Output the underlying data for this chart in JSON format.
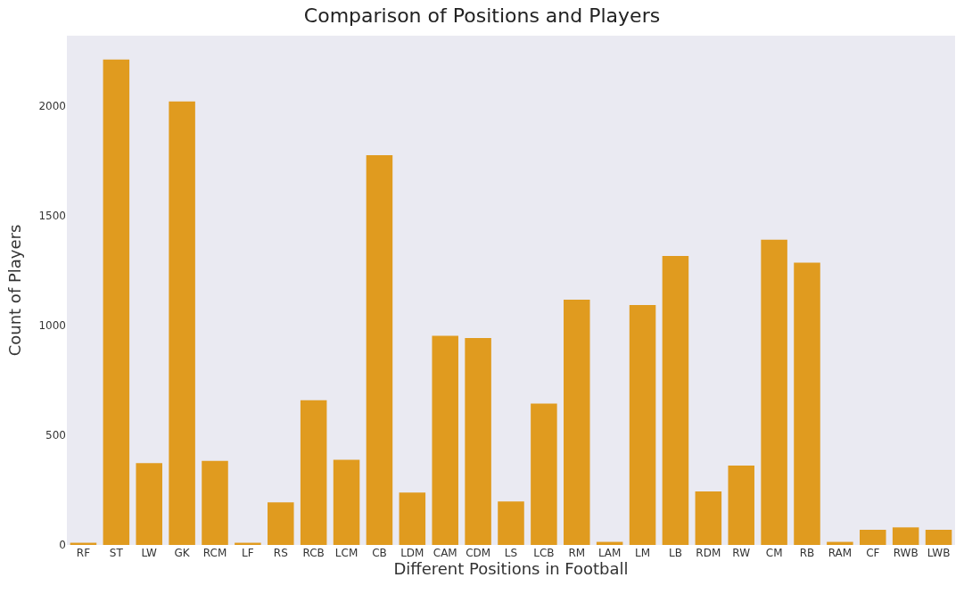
{
  "chart_data": {
    "type": "bar",
    "title": "Comparison of Positions and Players",
    "xlabel": "Different Positions in Football",
    "ylabel": "Count of Players",
    "categories": [
      "RF",
      "ST",
      "LW",
      "GK",
      "RCM",
      "LF",
      "RS",
      "RCB",
      "LCM",
      "CB",
      "LDM",
      "CAM",
      "CDM",
      "LS",
      "LCB",
      "RM",
      "LAM",
      "LM",
      "LB",
      "RDM",
      "RW",
      "CM",
      "RB",
      "RAM",
      "CF",
      "RWB",
      "LWB"
    ],
    "values": [
      10,
      2211,
      373,
      2020,
      383,
      10,
      194,
      659,
      388,
      1776,
      239,
      953,
      943,
      198,
      644,
      1117,
      14,
      1093,
      1316,
      244,
      362,
      1391,
      1286,
      14,
      69,
      80,
      69
    ],
    "color": "#e09b1f",
    "ylim": [
      0,
      2320
    ],
    "yticks": [
      0,
      500,
      1000,
      1500,
      2000
    ],
    "grid": false
  }
}
